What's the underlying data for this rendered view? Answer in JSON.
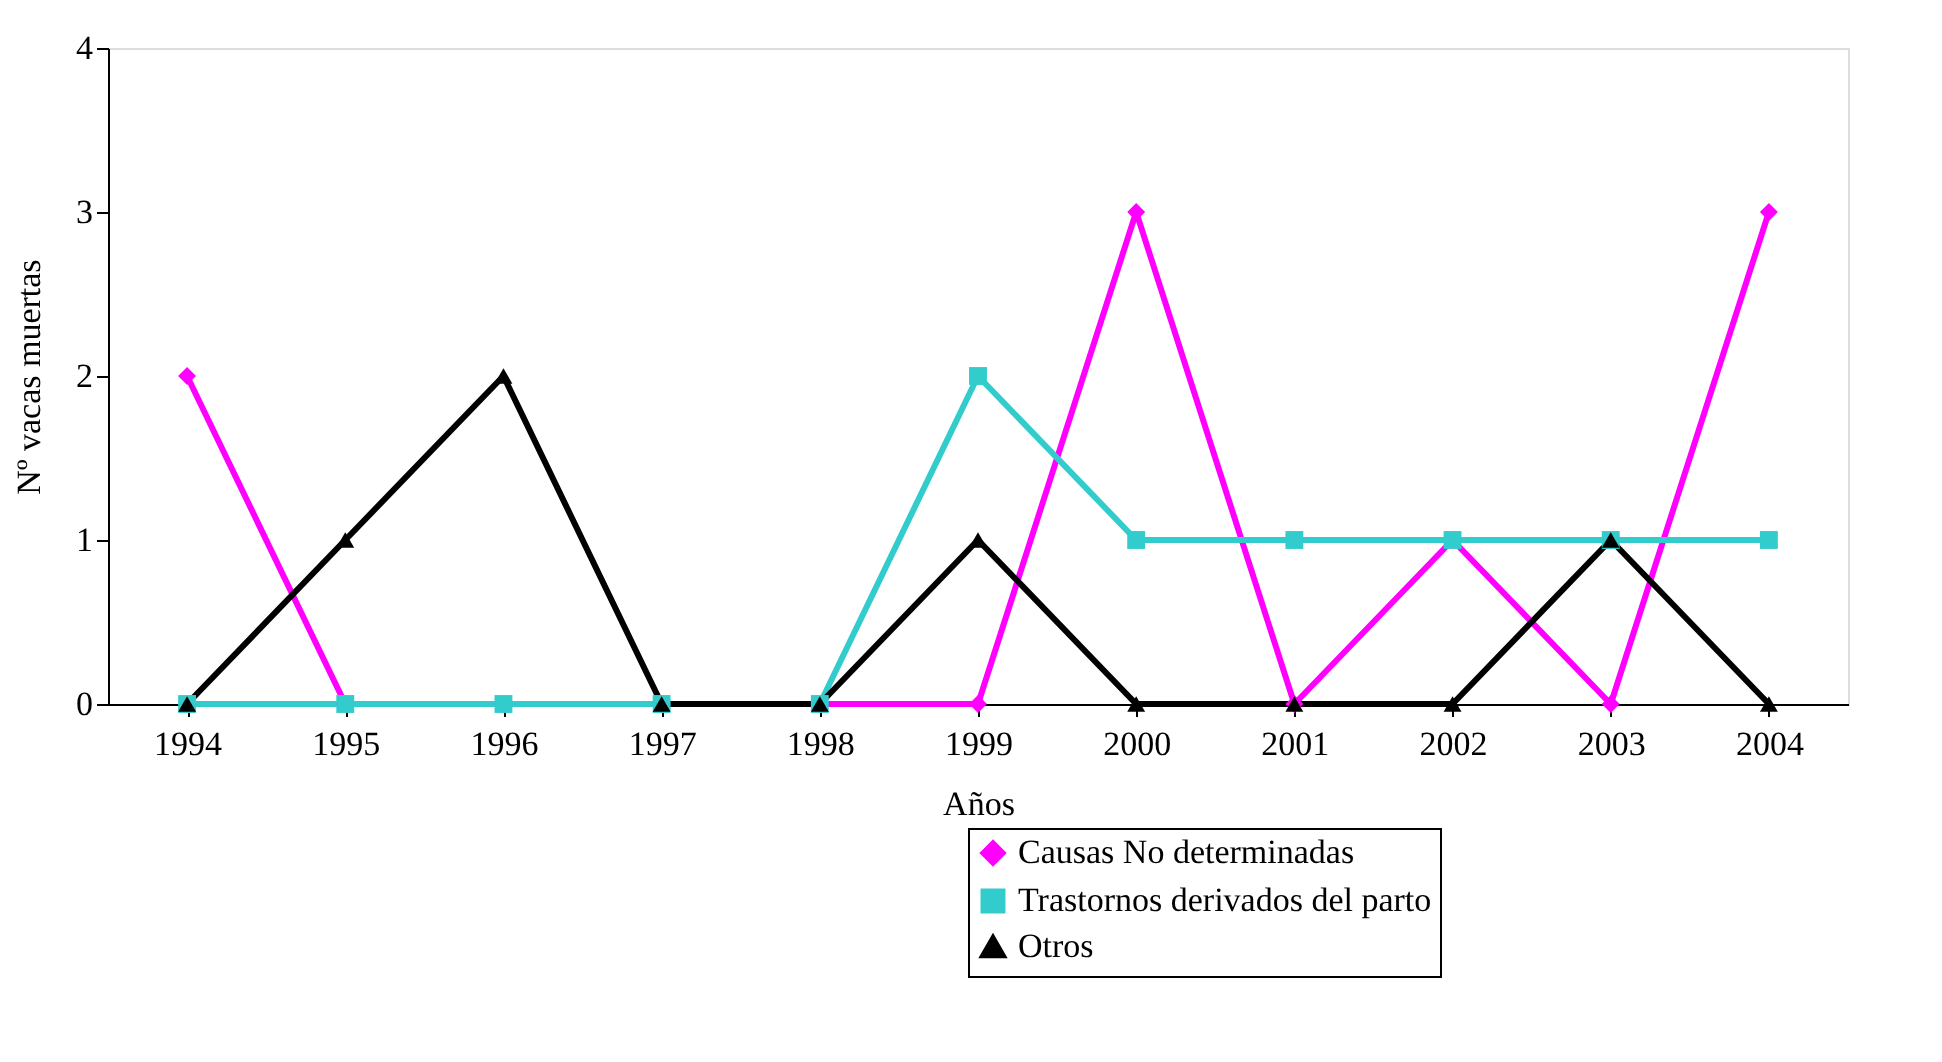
{
  "chart_data": {
    "type": "line",
    "xlabel": "Años",
    "ylabel": "Nº vacas muertas",
    "categories": [
      "1994",
      "1995",
      "1996",
      "1997",
      "1998",
      "1999",
      "2000",
      "2001",
      "2002",
      "2003",
      "2004"
    ],
    "ylim": [
      0,
      4
    ],
    "yticks": [
      0,
      1,
      2,
      3,
      4
    ],
    "grid": false,
    "legend": "bottom right",
    "line_style": "solid",
    "series": [
      {
        "name": "Causas No determinadas",
        "color": "#ff00ff",
        "marker": "diamond",
        "values": [
          2,
          0,
          0,
          0,
          0,
          0,
          3,
          0,
          1,
          0,
          3
        ]
      },
      {
        "name": "Trastornos derivados del parto",
        "color": "#33cccc",
        "marker": "square",
        "values": [
          0,
          0,
          0,
          0,
          0,
          2,
          1,
          1,
          1,
          1,
          1
        ]
      },
      {
        "name": "Otros",
        "color": "#000000",
        "marker": "triangle",
        "values": [
          0,
          1,
          2,
          0,
          0,
          1,
          0,
          0,
          0,
          1,
          0
        ]
      }
    ]
  }
}
